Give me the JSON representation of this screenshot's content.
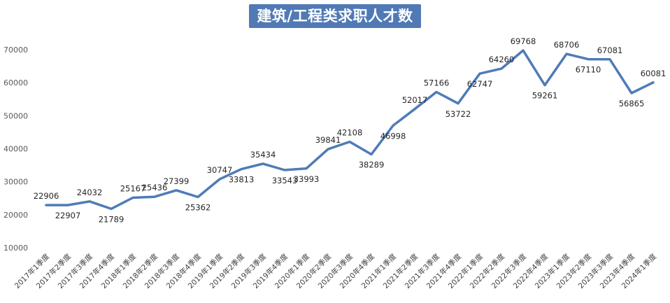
{
  "chart_data": {
    "type": "line",
    "title": "建筑/工程类求职人才数",
    "xlabel": "",
    "ylabel": "",
    "ylim": [
      10000,
      70000
    ],
    "yticks": [
      10000,
      20000,
      30000,
      40000,
      50000,
      60000,
      70000
    ],
    "grid": false,
    "legend": "none",
    "line_color": "#4f7bb8",
    "categories": [
      "2017年1季度",
      "2017年2季度",
      "2017年3季度",
      "2017年4季度",
      "2018年1季度",
      "2018年2季度",
      "2018年3季度",
      "2018年4季度",
      "2019年1季度",
      "2019年2季度",
      "2019年3季度",
      "2019年4季度",
      "2020年1季度",
      "2020年2季度",
      "2020年3季度",
      "2020年4季度",
      "2021年1季度",
      "2021年2季度",
      "2021年3季度",
      "2021年4季度",
      "2022年1季度",
      "2022年2季度",
      "2022年3季度",
      "2022年4季度",
      "2023年1季度",
      "2023年2季度",
      "2023年3季度",
      "2023年4季度",
      "2024年1季度"
    ],
    "values": [
      22906,
      22907,
      24032,
      21789,
      25167,
      25436,
      27399,
      25362,
      30747,
      33813,
      35434,
      33543,
      33993,
      39841,
      42108,
      38289,
      46998,
      52017,
      57166,
      53722,
      62747,
      64260,
      69768,
      59261,
      68706,
      67110,
      67081,
      56865,
      60081
    ],
    "label_positions": [
      "above",
      "below",
      "above",
      "below",
      "above",
      "above",
      "above",
      "below",
      "above",
      "below",
      "above",
      "below",
      "below",
      "above",
      "above",
      "below",
      "below",
      "above",
      "above",
      "below",
      "below",
      "above",
      "above",
      "below",
      "above",
      "below",
      "above",
      "below",
      "above"
    ]
  }
}
